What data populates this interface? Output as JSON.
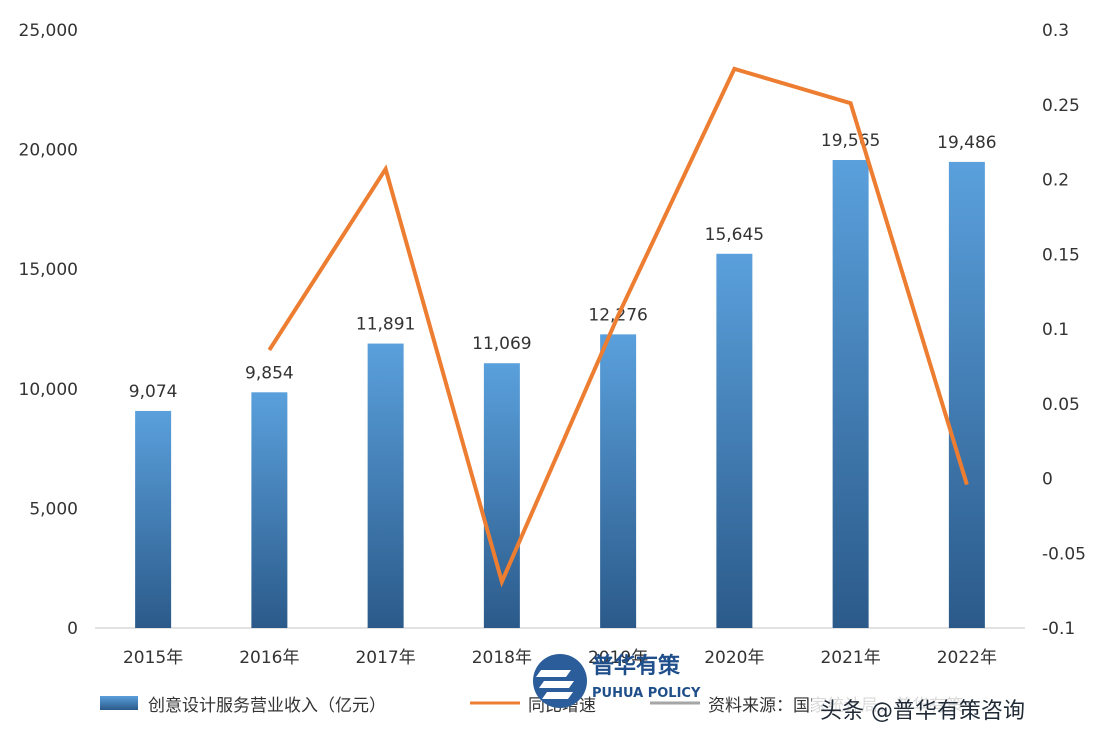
{
  "chart_data": {
    "type": "bar+line",
    "categories": [
      "2015年",
      "2016年",
      "2017年",
      "2018年",
      "2019年",
      "2020年",
      "2021年",
      "2022年"
    ],
    "series": [
      {
        "name": "创意设计服务营业收入（亿元）",
        "type": "bar",
        "axis": "left",
        "values": [
          9074,
          9854,
          11891,
          11069,
          12276,
          15645,
          19565,
          19486
        ],
        "labels": [
          "9,074",
          "9,854",
          "11,891",
          "11,069",
          "12,276",
          "15,645",
          "19,565",
          "19,486"
        ]
      },
      {
        "name": "同比增速",
        "type": "line",
        "axis": "right",
        "values": [
          null,
          0.086,
          0.207,
          -0.069,
          0.109,
          0.274,
          0.251,
          -0.004
        ]
      }
    ],
    "y_left": {
      "range": [
        0,
        25000
      ],
      "ticks": [
        0,
        5000,
        10000,
        15000,
        20000,
        25000
      ],
      "tick_labels": [
        "0",
        "5,000",
        "10,000",
        "15,000",
        "20,000",
        "25,000"
      ]
    },
    "y_right": {
      "range": [
        -0.1,
        0.3
      ],
      "ticks": [
        -0.1,
        -0.05,
        0,
        0.05,
        0.1,
        0.15,
        0.2,
        0.25,
        0.3
      ],
      "tick_labels": [
        "-0.1",
        "-0.05",
        "0",
        "0.05",
        "0.1",
        "0.15",
        "0.2",
        "0.25",
        "0.3"
      ]
    },
    "legend": [
      {
        "label": "创意设计服务营业收入（亿元）",
        "kind": "bar"
      },
      {
        "label": "同比增速",
        "kind": "line"
      },
      {
        "label": "资料来源：国家统计局，普华有策",
        "kind": "line-gray"
      }
    ],
    "legend_position": "bottom",
    "colors": {
      "bar_top": "#5aa0dc",
      "bar_bottom": "#2b5a8a",
      "line": "#ed7d31",
      "source_line": "#a6a6a6",
      "axis": "#d9d9d9",
      "text": "#333333"
    }
  },
  "watermark": {
    "logo_text": "普华有策",
    "logo_subtext": "PUHUA POLICY",
    "credit": "头条 @普华有策咨询"
  }
}
